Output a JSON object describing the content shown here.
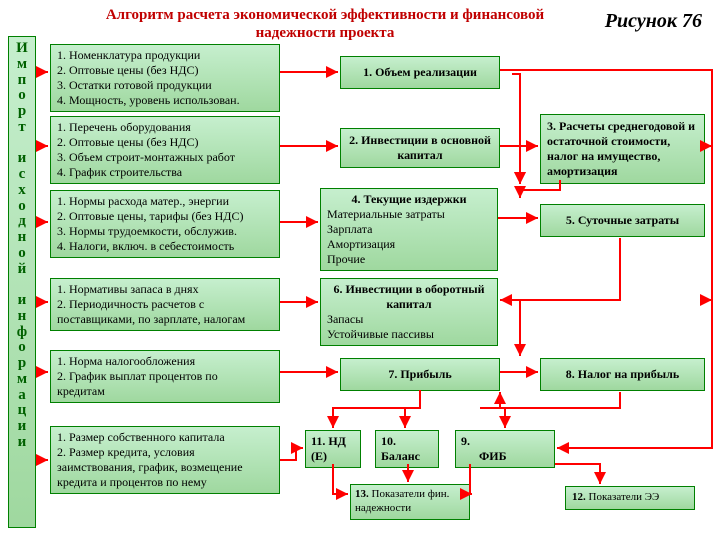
{
  "title": "Алгоритм расчета экономической эффективности и финансовой надежности проекта",
  "figref": "Рисунок 76",
  "sidebar_letters": [
    "И",
    "м",
    "п",
    "о",
    "р",
    "т",
    "",
    "и",
    "с",
    "х",
    "о",
    "д",
    "н",
    "о",
    "й",
    "",
    "и",
    "н",
    "ф",
    "о",
    "р",
    "м",
    "а",
    "ц",
    "и",
    "и"
  ],
  "colors": {
    "box_border": "#008000",
    "box_fill_top": "#c6efce",
    "box_fill_bottom": "#9fd89f",
    "arrow": "#ff0000",
    "title": "#c00000"
  },
  "left": {
    "b1": [
      "1. Номенклатура продукции",
      "2. Оптовые цены (без НДС)",
      "3. Остатки готовой продукции",
      "4. Мощность, уровень использован."
    ],
    "b2": [
      "1. Перечень оборудования",
      "2. Оптовые цены (без НДС)",
      "3. Объем строит-монтажных работ",
      "4. График строительства"
    ],
    "b3": [
      "1. Нормы расхода матер., энергии",
      "2. Оптовые цены, тарифы (без НДС)",
      "3. Нормы трудоемкости, обслужив.",
      "4. Налоги, включ. в себестоимость"
    ],
    "b4": [
      "1. Нормативы запаса в днях",
      "2. Периодичность расчетов с",
      "    поставщиками, по зарплате, налогам"
    ],
    "b5": [
      "1. Норма налогообложения",
      "2. График выплат процентов по",
      "        кредитам"
    ],
    "b6": [
      "1. Размер собственного капитала",
      "2. Размер кредита, условия",
      "заимствования, график, возмещение",
      "кредита и процентов по нему"
    ]
  },
  "mid": {
    "m1": "1. Объем реализации",
    "m2": "2. Инвестиции в основной капитал",
    "m4h": "4. Текущие издержки",
    "m4": [
      "Материальные затраты",
      "Зарплата",
      "Амортизация",
      "Прочие"
    ],
    "m6h": "6. Инвестиции в оборотный капитал",
    "m6": [
      "Запасы",
      "Устойчивые пассивы"
    ],
    "m7": "7. Прибыль",
    "m11": "11. НД (Е)",
    "m10": "10. Баланс",
    "m13": "13.  Показатели фин. надежности"
  },
  "right": {
    "r3": "3. Расчеты среднегодовой и  остаточной стоимости, налог на имущество,  амортизация",
    "r5": "5. Суточные затраты",
    "r8": "8. Налог на прибыль",
    "r9": "9. ФИБ",
    "r12": "12.  Показатели  ЭЭ"
  }
}
